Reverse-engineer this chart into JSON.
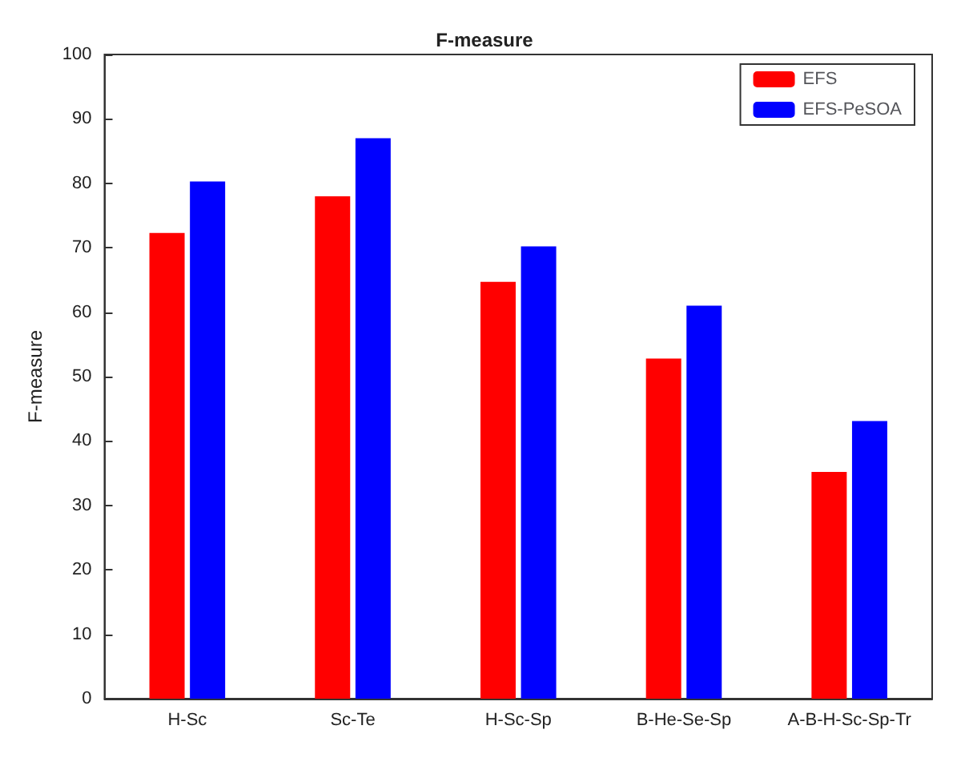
{
  "chart_data": {
    "type": "bar",
    "title": "F-measure",
    "ylabel": "F-measure",
    "categories": [
      "H-Sc",
      "Sc-Te",
      "H-Sc-Sp",
      "B-He-Se-Sp",
      "A-B-H-Sc-Sp-Tr"
    ],
    "series": [
      {
        "name": "EFS",
        "color": "#ff0000",
        "values": [
          72.3,
          78,
          64.7,
          52.8,
          35.2
        ]
      },
      {
        "name": "EFS-PeSOA",
        "color": "#0000ff",
        "values": [
          80.3,
          87,
          70.2,
          61,
          43.1
        ]
      }
    ],
    "ylim": [
      0,
      100
    ],
    "yticks": [
      0,
      10,
      20,
      30,
      40,
      50,
      60,
      70,
      80,
      90,
      100
    ],
    "grid": false,
    "legend": "top right"
  }
}
